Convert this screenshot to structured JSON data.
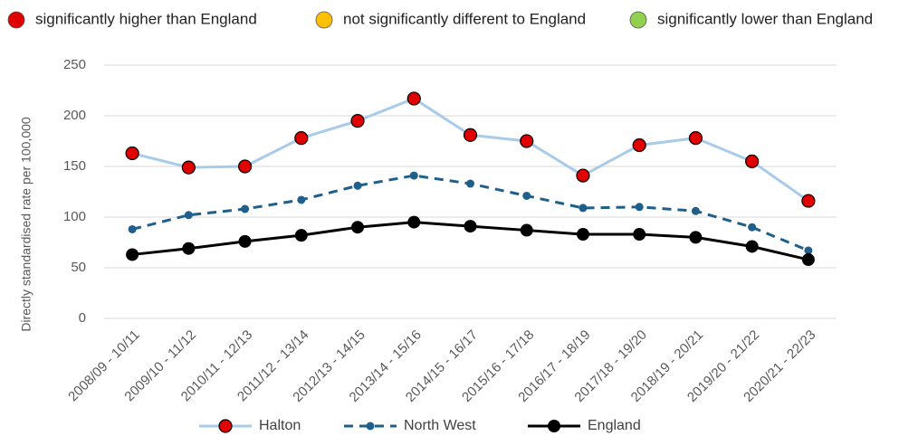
{
  "chart_data": {
    "type": "line",
    "significance_key": [
      {
        "label": "significantly higher than England",
        "color": "#e00000"
      },
      {
        "label": "not significantly different to England",
        "color": "#ffc000"
      },
      {
        "label": "significantly lower than England",
        "color": "#92d050"
      }
    ],
    "y_label": "Directly standardised rate per 100,000",
    "categories": [
      "2008/09 - 10/11",
      "2009/10 - 11/12",
      "2010/11 - 12/13",
      "2011/12 - 13/14",
      "2012/13 - 14/15",
      "2013/14 - 15/16",
      "2014/15 - 16/17",
      "2015/16 - 17/18",
      "2016/17 - 18/19",
      "2017/18 - 19/20",
      "2018/19 - 20/21",
      "2019/20 - 21/22",
      "2020/21 - 22/23"
    ],
    "series": [
      {
        "name": "Halton",
        "color": "#a9cbea",
        "marker": "#e00000",
        "values": [
          163,
          149,
          150,
          178,
          195,
          217,
          181,
          175,
          141,
          171,
          178,
          155,
          116
        ]
      },
      {
        "name": "North West",
        "color": "#1f5f8b",
        "dash": true,
        "values": [
          88,
          102,
          108,
          117,
          131,
          141,
          133,
          121,
          109,
          110,
          106,
          90,
          67
        ]
      },
      {
        "name": "England",
        "color": "#000000",
        "values": [
          63,
          69,
          76,
          82,
          90,
          95,
          91,
          87,
          83,
          83,
          80,
          71,
          58
        ]
      }
    ],
    "ylim": [
      0,
      250
    ],
    "yticks": [
      0,
      50,
      100,
      150,
      200,
      250
    ],
    "grid": true,
    "legend": "bottom"
  }
}
